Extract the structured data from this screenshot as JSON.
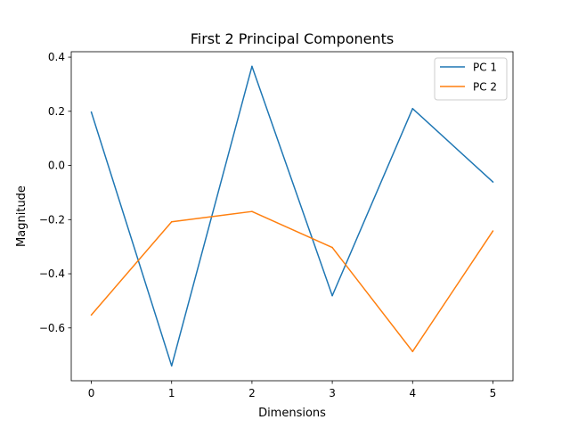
{
  "chart_data": {
    "type": "line",
    "title": "First 2 Principal Components",
    "xlabel": "Dimensions",
    "ylabel": "Magnitude",
    "x": [
      0,
      1,
      2,
      3,
      4,
      5
    ],
    "xlim": [
      -0.25,
      5.25
    ],
    "ylim": [
      -0.795,
      0.42
    ],
    "xticks": [
      "0",
      "1",
      "2",
      "3",
      "4",
      "5"
    ],
    "yticks": [
      {
        "value": 0.4,
        "label": "0.4"
      },
      {
        "value": 0.2,
        "label": "0.2"
      },
      {
        "value": 0.0,
        "label": "0.0"
      },
      {
        "value": -0.2,
        "label": "−0.2"
      },
      {
        "value": -0.4,
        "label": "−0.4"
      },
      {
        "value": -0.6,
        "label": "−0.6"
      }
    ],
    "grid": false,
    "legend_position": "top-right",
    "series": [
      {
        "name": "PC 1",
        "color": "#1f77b4",
        "values": [
          0.197,
          -0.74,
          0.366,
          -0.481,
          0.21,
          -0.061
        ]
      },
      {
        "name": "PC 2",
        "color": "#ff7f0e",
        "values": [
          -0.552,
          -0.208,
          -0.17,
          -0.303,
          -0.687,
          -0.242
        ]
      }
    ]
  }
}
